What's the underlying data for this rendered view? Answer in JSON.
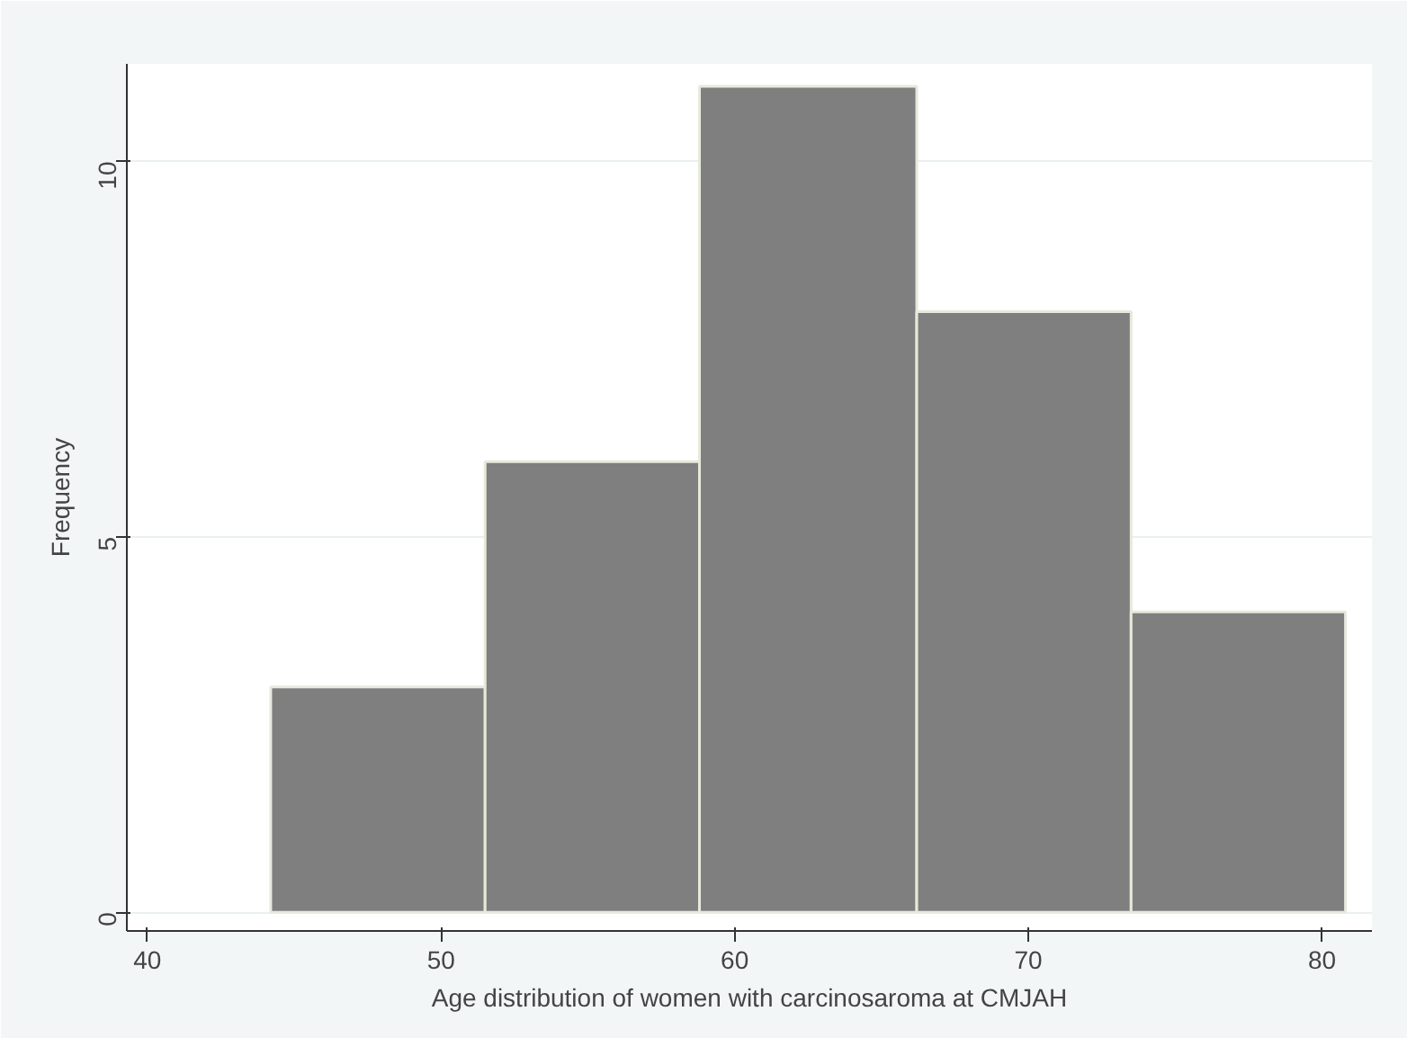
{
  "chart_data": {
    "type": "histogram",
    "xlabel": "Age distribution of women with carcinosaroma at CMJAH",
    "ylabel": "Frequency",
    "bins": [
      44.2,
      51.5,
      58.8,
      66.2,
      73.5,
      80.8
    ],
    "values": [
      3,
      6,
      11,
      8,
      4
    ],
    "color": "#7f7f7f",
    "xlim": [
      39.3,
      81.7
    ],
    "xticks": [
      40,
      50,
      60,
      70,
      80
    ],
    "ylim": [
      -0.25,
      11.3
    ],
    "yticks": [
      0,
      5,
      10
    ],
    "grid": "y"
  }
}
